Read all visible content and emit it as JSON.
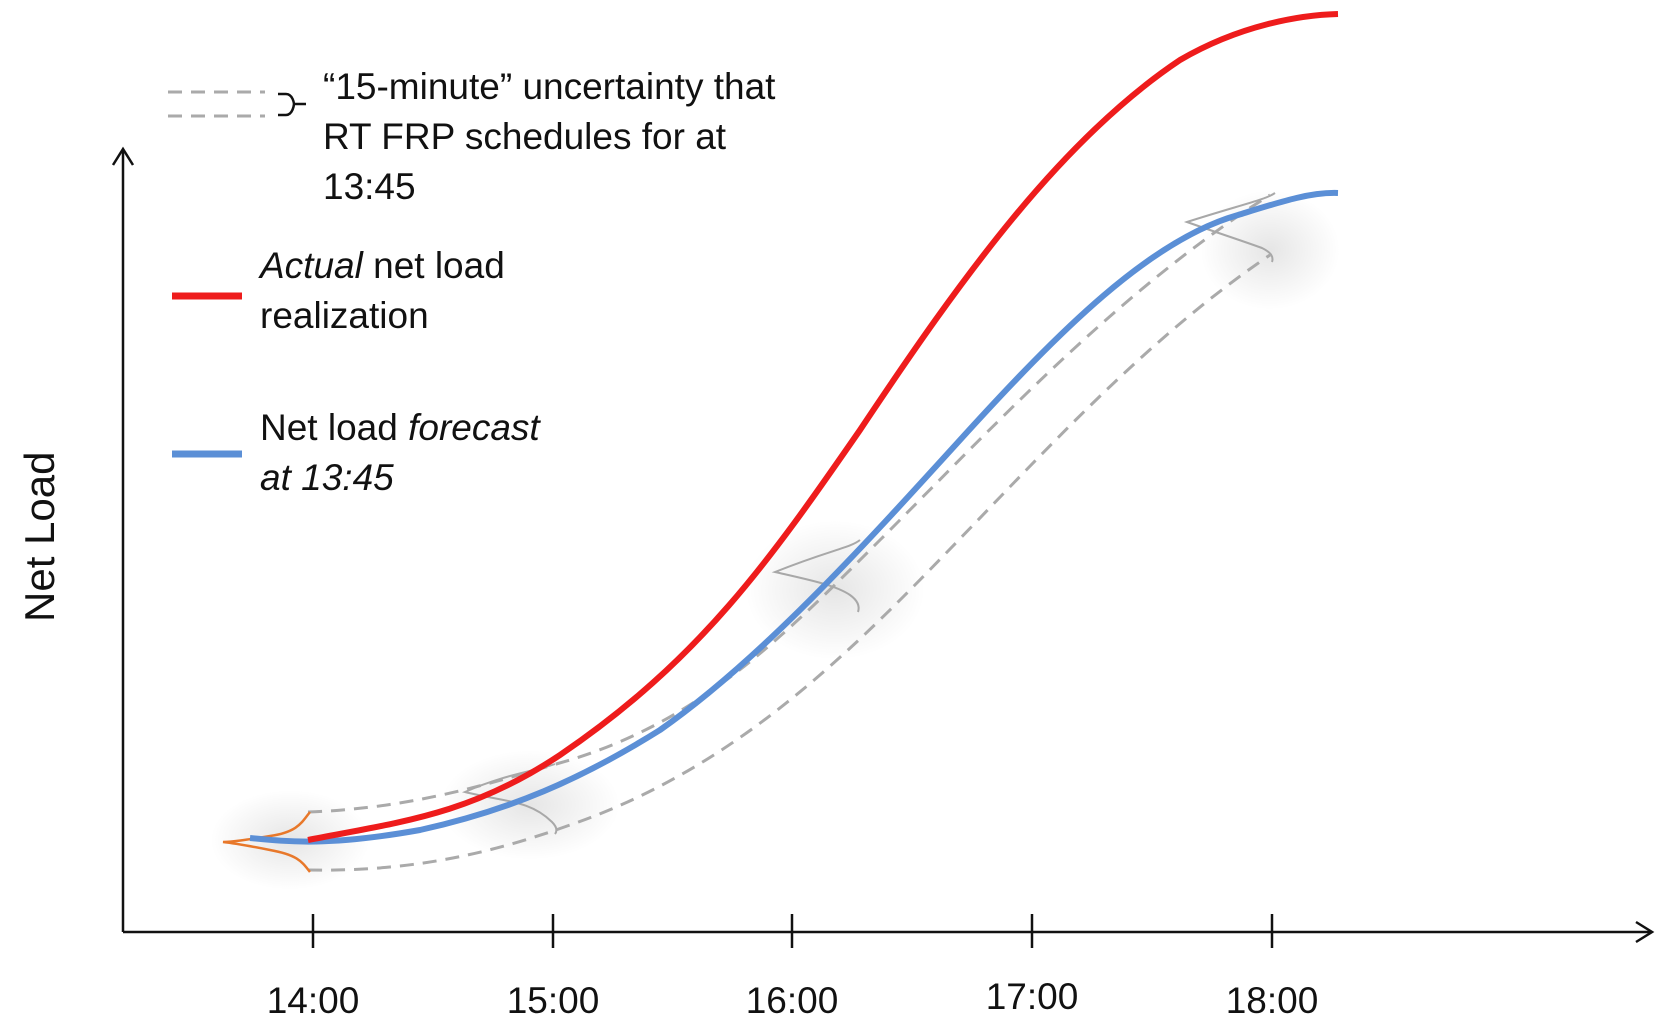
{
  "chart": {
    "ylabel": "Net Load",
    "xticks": [
      "14:00",
      "15:00",
      "16:00",
      "17:00",
      "18:00"
    ]
  },
  "legend": {
    "band_line1": "“15-minute” uncertainty that",
    "band_line2": "RT FRP schedules for at",
    "band_line3": "13:45",
    "actual_italic": "Actual",
    "actual_rest": " net load",
    "actual_line2": "realization",
    "forecast_text": "Net load ",
    "forecast_italic": "forecast",
    "forecast_line2": "at 13:45"
  },
  "colors": {
    "actual": "#ee1c1c",
    "forecast": "#5b8fd6",
    "band": "#aaaaaa",
    "initial_distribution": "#e8782a",
    "axis": "#111111"
  }
}
